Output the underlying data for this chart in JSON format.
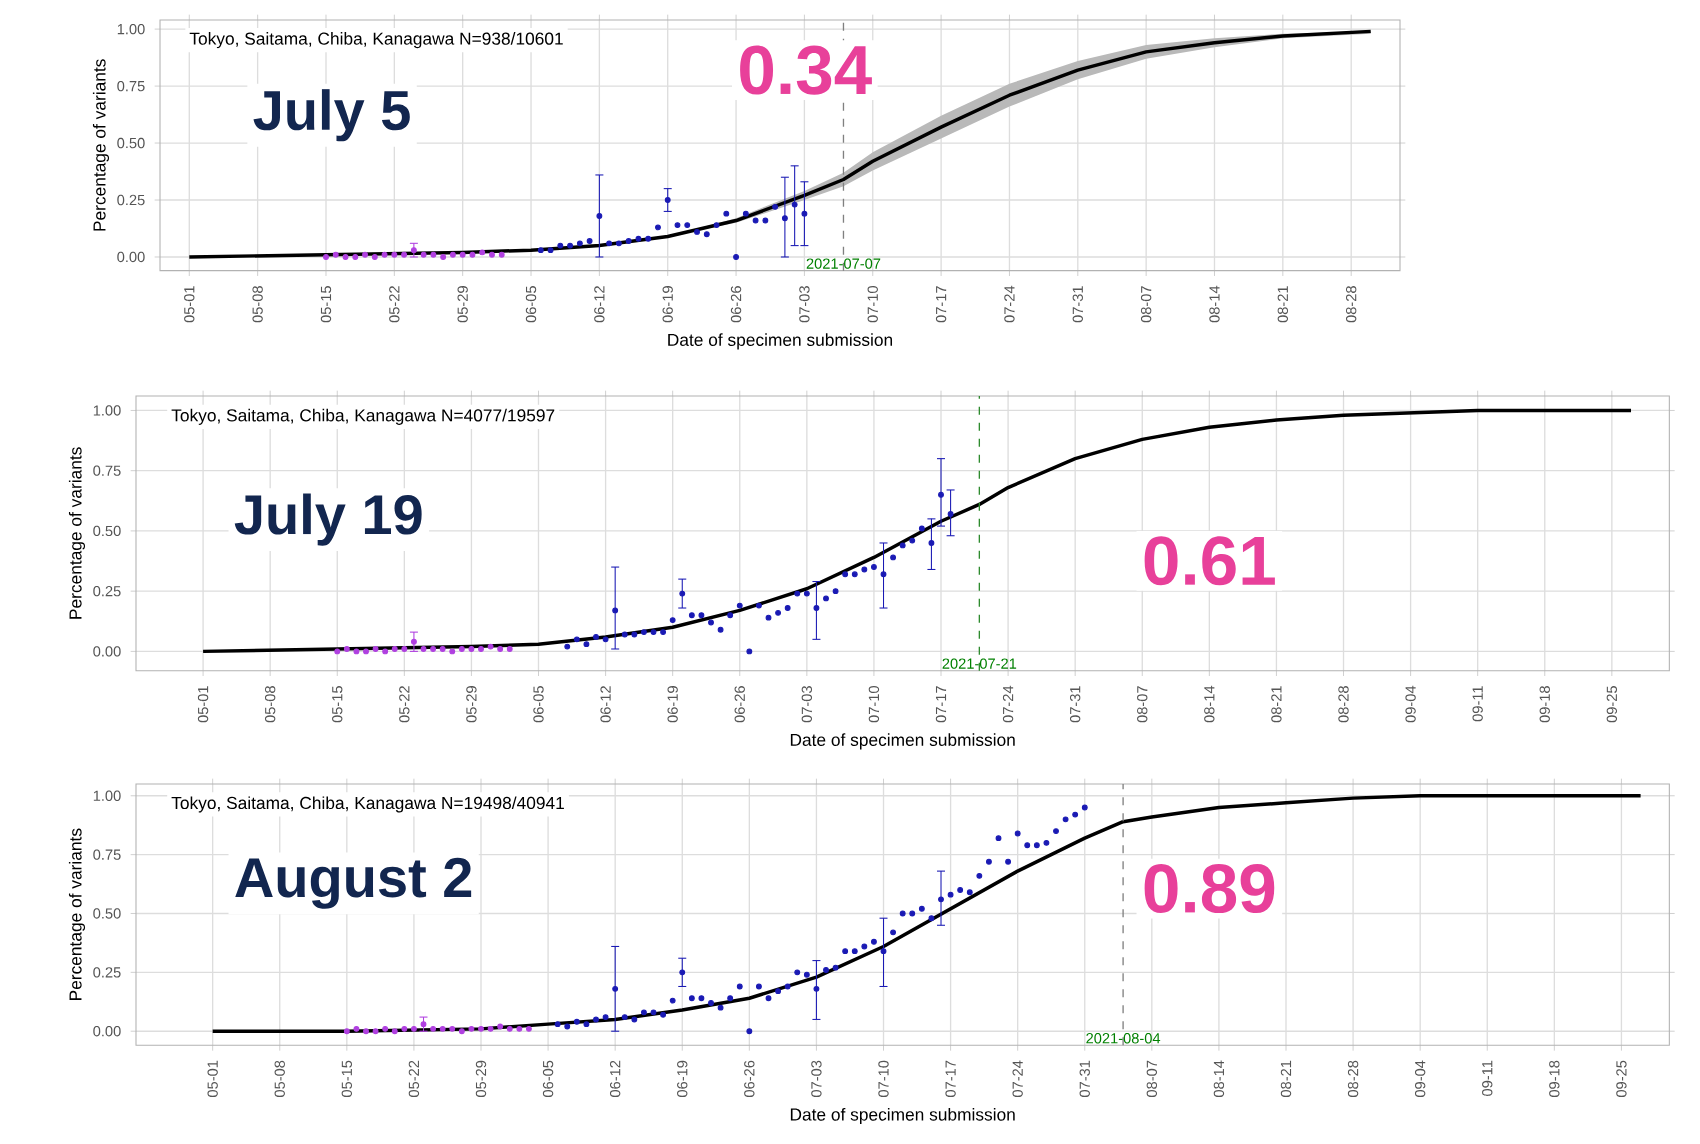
{
  "chart_data": [
    {
      "type": "line",
      "subtitle": "Tokyo, Saitama, Chiba, Kanagawa  N=938/10601",
      "xlabel": "Date of specimen submission",
      "ylabel": "Percentage of variants",
      "annotations": [
        "July 5",
        "0.34"
      ],
      "xlim": [
        "2021-04-28",
        "2021-09-02"
      ],
      "ylim": [
        -0.06,
        1.04
      ],
      "xticks": [
        {
          "value": "2021-05-01",
          "label": "05-01"
        },
        {
          "value": "2021-05-08",
          "label": "05-08"
        },
        {
          "value": "2021-05-15",
          "label": "05-15"
        },
        {
          "value": "2021-05-22",
          "label": "05-22"
        },
        {
          "value": "2021-05-29",
          "label": "05-29"
        },
        {
          "value": "2021-06-05",
          "label": "06-05"
        },
        {
          "value": "2021-06-12",
          "label": "06-12"
        },
        {
          "value": "2021-06-19",
          "label": "06-19"
        },
        {
          "value": "2021-06-26",
          "label": "06-26"
        },
        {
          "value": "2021-07-03",
          "label": "07-03"
        },
        {
          "value": "2021-07-10",
          "label": "07-10"
        },
        {
          "value": "2021-07-17",
          "label": "07-17"
        },
        {
          "value": "2021-07-24",
          "label": "07-24"
        },
        {
          "value": "2021-07-31",
          "label": "07-31"
        },
        {
          "value": "2021-08-07",
          "label": "08-07"
        },
        {
          "value": "2021-08-14",
          "label": "08-14"
        },
        {
          "value": "2021-08-21",
          "label": "08-21"
        },
        {
          "value": "2021-08-28",
          "label": "08-28"
        }
      ],
      "yticks": [
        {
          "value": 0,
          "label": "0.00"
        },
        {
          "value": 0.25,
          "label": "0.25"
        },
        {
          "value": 0.5,
          "label": "0.50"
        },
        {
          "value": 0.75,
          "label": "0.75"
        },
        {
          "value": 1,
          "label": "1.00"
        }
      ],
      "grid": true,
      "ref_lines": [
        {
          "axis": "x",
          "value": "2021-07-07",
          "label": "2021-07-07",
          "color": "#808080",
          "line_style": "dashed"
        }
      ],
      "series": [
        {
          "marker": "none",
          "color": "#000000",
          "x": [
            "2021-05-01",
            "2021-05-15",
            "2021-05-29",
            "2021-06-05",
            "2021-06-12",
            "2021-06-19",
            "2021-06-26",
            "2021-07-03",
            "2021-07-07",
            "2021-07-10",
            "2021-07-17",
            "2021-07-24",
            "2021-07-31",
            "2021-08-07",
            "2021-08-14",
            "2021-08-21",
            "2021-08-30"
          ],
          "values": [
            0,
            0.01,
            0.02,
            0.03,
            0.05,
            0.09,
            0.16,
            0.27,
            0.34,
            0.42,
            0.57,
            0.71,
            0.82,
            0.9,
            0.94,
            0.97,
            0.99
          ],
          "lower": [
            0,
            0.01,
            0.02,
            0.03,
            0.05,
            0.09,
            0.15,
            0.25,
            0.31,
            0.38,
            0.52,
            0.66,
            0.78,
            0.87,
            0.92,
            0.96,
            0.98
          ],
          "upper": [
            0,
            0.01,
            0.02,
            0.03,
            0.05,
            0.09,
            0.17,
            0.29,
            0.37,
            0.46,
            0.62,
            0.76,
            0.86,
            0.93,
            0.96,
            0.98,
            0.99
          ]
        },
        {
          "type": "scatter",
          "color": "#b040e0",
          "x": [
            "2021-05-15",
            "2021-05-16",
            "2021-05-17",
            "2021-05-18",
            "2021-05-19",
            "2021-05-20",
            "2021-05-21",
            "2021-05-22",
            "2021-05-23",
            "2021-05-24",
            "2021-05-25",
            "2021-05-26",
            "2021-05-27",
            "2021-05-28",
            "2021-05-29",
            "2021-05-30",
            "2021-05-31",
            "2021-06-01",
            "2021-06-02"
          ],
          "values": [
            0,
            0.01,
            0,
            0,
            0.01,
            0,
            0.01,
            0.01,
            0.01,
            0.03,
            0.01,
            0.01,
            0,
            0.01,
            0.01,
            0.01,
            0.02,
            0.01,
            0.01
          ],
          "errors": [
            null,
            null,
            null,
            null,
            null,
            null,
            null,
            null,
            null,
            [
              0,
              0.06
            ],
            null,
            null,
            null,
            null,
            null,
            null,
            null,
            null,
            null
          ],
          "marker": "circle"
        },
        {
          "type": "scatter",
          "color": "#1a1ab4",
          "x": [
            "2021-06-06",
            "2021-06-07",
            "2021-06-08",
            "2021-06-09",
            "2021-06-10",
            "2021-06-11",
            "2021-06-12",
            "2021-06-13",
            "2021-06-14",
            "2021-06-15",
            "2021-06-16",
            "2021-06-17",
            "2021-06-18",
            "2021-06-19",
            "2021-06-20",
            "2021-06-21",
            "2021-06-22",
            "2021-06-23",
            "2021-06-24",
            "2021-06-25",
            "2021-06-26",
            "2021-06-27",
            "2021-06-28",
            "2021-06-29",
            "2021-06-30",
            "2021-07-01",
            "2021-07-02",
            "2021-07-03"
          ],
          "values": [
            0.03,
            0.03,
            0.05,
            0.05,
            0.06,
            0.07,
            0.18,
            0.06,
            0.06,
            0.07,
            0.08,
            0.08,
            0.13,
            0.25,
            0.14,
            0.14,
            0.11,
            0.1,
            0.14,
            0.19,
            0,
            0.19,
            0.16,
            0.16,
            0.22,
            0.17,
            0.23,
            0.19
          ],
          "errors": [
            null,
            null,
            null,
            null,
            null,
            null,
            [
              0,
              0.36
            ],
            null,
            null,
            null,
            null,
            null,
            null,
            [
              0.2,
              0.3
            ],
            null,
            null,
            null,
            null,
            null,
            null,
            null,
            null,
            null,
            null,
            null,
            [
              0,
              0.35
            ],
            [
              0.05,
              0.4
            ],
            [
              0.05,
              0.33
            ]
          ],
          "marker": "circle"
        }
      ]
    },
    {
      "type": "line",
      "subtitle": "Tokyo, Saitama, Chiba, Kanagawa  N=4077/19597",
      "xlabel": "Date of specimen submission",
      "ylabel": "Percentage of variants",
      "annotations": [
        "July 19",
        "0.61"
      ],
      "xlim": [
        "2021-04-24",
        "2021-10-01"
      ],
      "ylim": [
        -0.08,
        1.06
      ],
      "xticks": [
        {
          "value": "2021-05-01",
          "label": "05-01"
        },
        {
          "value": "2021-05-08",
          "label": "05-08"
        },
        {
          "value": "2021-05-15",
          "label": "05-15"
        },
        {
          "value": "2021-05-22",
          "label": "05-22"
        },
        {
          "value": "2021-05-29",
          "label": "05-29"
        },
        {
          "value": "2021-06-05",
          "label": "06-05"
        },
        {
          "value": "2021-06-12",
          "label": "06-12"
        },
        {
          "value": "2021-06-19",
          "label": "06-19"
        },
        {
          "value": "2021-06-26",
          "label": "06-26"
        },
        {
          "value": "2021-07-03",
          "label": "07-03"
        },
        {
          "value": "2021-07-10",
          "label": "07-10"
        },
        {
          "value": "2021-07-17",
          "label": "07-17"
        },
        {
          "value": "2021-07-24",
          "label": "07-24"
        },
        {
          "value": "2021-07-31",
          "label": "07-31"
        },
        {
          "value": "2021-08-07",
          "label": "08-07"
        },
        {
          "value": "2021-08-14",
          "label": "08-14"
        },
        {
          "value": "2021-08-21",
          "label": "08-21"
        },
        {
          "value": "2021-08-28",
          "label": "08-28"
        },
        {
          "value": "2021-09-04",
          "label": "09-04"
        },
        {
          "value": "2021-09-11",
          "label": "09-11"
        },
        {
          "value": "2021-09-18",
          "label": "09-18"
        },
        {
          "value": "2021-09-25",
          "label": "09-25"
        }
      ],
      "yticks": [
        {
          "value": 0,
          "label": "0.00"
        },
        {
          "value": 0.25,
          "label": "0.25"
        },
        {
          "value": 0.5,
          "label": "0.50"
        },
        {
          "value": 0.75,
          "label": "0.75"
        },
        {
          "value": 1,
          "label": "1.00"
        }
      ],
      "grid": true,
      "ref_lines": [
        {
          "axis": "x",
          "value": "2021-07-21",
          "label": "2021-07-21",
          "color": "#2e8b2e",
          "line_style": "dashed"
        }
      ],
      "series": [
        {
          "marker": "none",
          "color": "#000000",
          "x": [
            "2021-05-01",
            "2021-05-15",
            "2021-05-29",
            "2021-06-05",
            "2021-06-12",
            "2021-06-19",
            "2021-06-26",
            "2021-07-03",
            "2021-07-10",
            "2021-07-17",
            "2021-07-21",
            "2021-07-24",
            "2021-07-31",
            "2021-08-07",
            "2021-08-14",
            "2021-08-21",
            "2021-08-28",
            "2021-09-04",
            "2021-09-11",
            "2021-09-27"
          ],
          "values": [
            0,
            0.01,
            0.02,
            0.03,
            0.06,
            0.1,
            0.17,
            0.26,
            0.39,
            0.54,
            0.61,
            0.68,
            0.8,
            0.88,
            0.93,
            0.96,
            0.98,
            0.99,
            1,
            1
          ]
        },
        {
          "type": "scatter",
          "color": "#b040e0",
          "x": [
            "2021-05-15",
            "2021-05-16",
            "2021-05-17",
            "2021-05-18",
            "2021-05-19",
            "2021-05-20",
            "2021-05-21",
            "2021-05-22",
            "2021-05-23",
            "2021-05-24",
            "2021-05-25",
            "2021-05-26",
            "2021-05-27",
            "2021-05-28",
            "2021-05-29",
            "2021-05-30",
            "2021-05-31",
            "2021-06-01",
            "2021-06-02"
          ],
          "values": [
            0,
            0.01,
            0,
            0,
            0.01,
            0,
            0.01,
            0.01,
            0.04,
            0.01,
            0.01,
            0.01,
            0,
            0.01,
            0.01,
            0.01,
            0.02,
            0.01,
            0.01
          ],
          "errors": [
            null,
            null,
            null,
            null,
            null,
            null,
            null,
            null,
            [
              0,
              0.08
            ],
            null,
            null,
            null,
            null,
            null,
            null,
            null,
            null,
            null,
            null
          ],
          "marker": "circle"
        },
        {
          "type": "scatter",
          "color": "#1a1ab4",
          "x": [
            "2021-06-08",
            "2021-06-09",
            "2021-06-10",
            "2021-06-11",
            "2021-06-12",
            "2021-06-13",
            "2021-06-14",
            "2021-06-15",
            "2021-06-16",
            "2021-06-17",
            "2021-06-18",
            "2021-06-19",
            "2021-06-20",
            "2021-06-21",
            "2021-06-22",
            "2021-06-23",
            "2021-06-24",
            "2021-06-25",
            "2021-06-26",
            "2021-06-27",
            "2021-06-28",
            "2021-06-29",
            "2021-06-30",
            "2021-07-01",
            "2021-07-02",
            "2021-07-03",
            "2021-07-04",
            "2021-07-05",
            "2021-07-06",
            "2021-07-07",
            "2021-07-08",
            "2021-07-09",
            "2021-07-10",
            "2021-07-11",
            "2021-07-12",
            "2021-07-13",
            "2021-07-14",
            "2021-07-15",
            "2021-07-16",
            "2021-07-17",
            "2021-07-18"
          ],
          "values": [
            0.02,
            0.05,
            0.03,
            0.06,
            0.05,
            0.17,
            0.07,
            0.07,
            0.08,
            0.08,
            0.08,
            0.13,
            0.24,
            0.15,
            0.15,
            0.12,
            0.09,
            0.15,
            0.19,
            0,
            0.19,
            0.14,
            0.16,
            0.18,
            0.24,
            0.24,
            0.18,
            0.22,
            0.25,
            0.32,
            0.32,
            0.34,
            0.35,
            0.32,
            0.39,
            0.44,
            0.46,
            0.51,
            0.45,
            0.65,
            0.57
          ],
          "errors": [
            null,
            null,
            null,
            null,
            null,
            [
              0.01,
              0.35
            ],
            null,
            null,
            null,
            null,
            null,
            null,
            [
              0.18,
              0.3
            ],
            null,
            null,
            null,
            null,
            null,
            null,
            null,
            null,
            null,
            null,
            null,
            null,
            null,
            [
              0.05,
              0.29
            ],
            null,
            null,
            null,
            null,
            null,
            null,
            [
              0.18,
              0.45
            ],
            null,
            null,
            null,
            null,
            [
              0.34,
              0.55
            ],
            [
              0.52,
              0.8
            ],
            [
              0.48,
              0.67
            ]
          ],
          "marker": "circle"
        }
      ]
    },
    {
      "type": "line",
      "subtitle": "Tokyo, Saitama, Chiba, Kanagawa  N=19498/40941",
      "xlabel": "Date of specimen submission",
      "ylabel": "Percentage of variants",
      "annotations": [
        "August 2",
        "0.89"
      ],
      "xlim": [
        "2021-04-23",
        "2021-09-30"
      ],
      "ylim": [
        -0.06,
        1.05
      ],
      "xticks": [
        {
          "value": "2021-05-01",
          "label": "05-01"
        },
        {
          "value": "2021-05-08",
          "label": "05-08"
        },
        {
          "value": "2021-05-15",
          "label": "05-15"
        },
        {
          "value": "2021-05-22",
          "label": "05-22"
        },
        {
          "value": "2021-05-29",
          "label": "05-29"
        },
        {
          "value": "2021-06-05",
          "label": "06-05"
        },
        {
          "value": "2021-06-12",
          "label": "06-12"
        },
        {
          "value": "2021-06-19",
          "label": "06-19"
        },
        {
          "value": "2021-06-26",
          "label": "06-26"
        },
        {
          "value": "2021-07-03",
          "label": "07-03"
        },
        {
          "value": "2021-07-10",
          "label": "07-10"
        },
        {
          "value": "2021-07-17",
          "label": "07-17"
        },
        {
          "value": "2021-07-24",
          "label": "07-24"
        },
        {
          "value": "2021-07-31",
          "label": "07-31"
        },
        {
          "value": "2021-08-07",
          "label": "08-07"
        },
        {
          "value": "2021-08-14",
          "label": "08-14"
        },
        {
          "value": "2021-08-21",
          "label": "08-21"
        },
        {
          "value": "2021-08-28",
          "label": "08-28"
        },
        {
          "value": "2021-09-04",
          "label": "09-04"
        },
        {
          "value": "2021-09-11",
          "label": "09-11"
        },
        {
          "value": "2021-09-18",
          "label": "09-18"
        },
        {
          "value": "2021-09-25",
          "label": "09-25"
        }
      ],
      "yticks": [
        {
          "value": 0,
          "label": "0.00"
        },
        {
          "value": 0.25,
          "label": "0.25"
        },
        {
          "value": 0.5,
          "label": "0.50"
        },
        {
          "value": 0.75,
          "label": "0.75"
        },
        {
          "value": 1,
          "label": "1.00"
        }
      ],
      "grid": true,
      "ref_lines": [
        {
          "axis": "x",
          "value": "2021-08-04",
          "label": "2021-08-04",
          "color": "#808080",
          "line_style": "dashed"
        }
      ],
      "series": [
        {
          "marker": "none",
          "color": "#000000",
          "x": [
            "2021-05-01",
            "2021-05-15",
            "2021-05-29",
            "2021-06-05",
            "2021-06-12",
            "2021-06-19",
            "2021-06-26",
            "2021-07-03",
            "2021-07-10",
            "2021-07-17",
            "2021-07-24",
            "2021-07-31",
            "2021-08-04",
            "2021-08-07",
            "2021-08-14",
            "2021-08-21",
            "2021-08-28",
            "2021-09-04",
            "2021-09-27"
          ],
          "values": [
            0,
            0,
            0.01,
            0.03,
            0.05,
            0.09,
            0.14,
            0.23,
            0.36,
            0.52,
            0.68,
            0.82,
            0.89,
            0.91,
            0.95,
            0.97,
            0.99,
            1,
            1
          ]
        },
        {
          "type": "scatter",
          "color": "#b040e0",
          "x": [
            "2021-05-15",
            "2021-05-16",
            "2021-05-17",
            "2021-05-18",
            "2021-05-19",
            "2021-05-20",
            "2021-05-21",
            "2021-05-22",
            "2021-05-23",
            "2021-05-24",
            "2021-05-25",
            "2021-05-26",
            "2021-05-27",
            "2021-05-28",
            "2021-05-29",
            "2021-05-30",
            "2021-05-31",
            "2021-06-01",
            "2021-06-02",
            "2021-06-03"
          ],
          "values": [
            0,
            0.01,
            0,
            0,
            0.01,
            0,
            0.01,
            0.01,
            0.03,
            0.01,
            0.01,
            0.01,
            0,
            0.01,
            0.01,
            0.01,
            0.02,
            0.01,
            0.01,
            0.01
          ],
          "errors": [
            null,
            null,
            null,
            null,
            null,
            null,
            null,
            null,
            [
              0,
              0.06
            ],
            null,
            null,
            null,
            null,
            null,
            null,
            null,
            null,
            null,
            null,
            null
          ],
          "marker": "circle"
        },
        {
          "type": "scatter",
          "color": "#1a1ab4",
          "x": [
            "2021-06-06",
            "2021-06-07",
            "2021-06-08",
            "2021-06-09",
            "2021-06-10",
            "2021-06-11",
            "2021-06-12",
            "2021-06-13",
            "2021-06-14",
            "2021-06-15",
            "2021-06-16",
            "2021-06-17",
            "2021-06-18",
            "2021-06-19",
            "2021-06-20",
            "2021-06-21",
            "2021-06-22",
            "2021-06-23",
            "2021-06-24",
            "2021-06-25",
            "2021-06-26",
            "2021-06-27",
            "2021-06-28",
            "2021-06-29",
            "2021-06-30",
            "2021-07-01",
            "2021-07-02",
            "2021-07-03",
            "2021-07-04",
            "2021-07-05",
            "2021-07-06",
            "2021-07-07",
            "2021-07-08",
            "2021-07-09",
            "2021-07-10",
            "2021-07-11",
            "2021-07-12",
            "2021-07-13",
            "2021-07-14",
            "2021-07-15",
            "2021-07-16",
            "2021-07-17",
            "2021-07-18",
            "2021-07-19",
            "2021-07-20",
            "2021-07-21",
            "2021-07-22",
            "2021-07-23",
            "2021-07-24",
            "2021-07-25",
            "2021-07-26",
            "2021-07-27",
            "2021-07-28",
            "2021-07-29",
            "2021-07-30",
            "2021-07-31"
          ],
          "values": [
            0.03,
            0.02,
            0.04,
            0.03,
            0.05,
            0.06,
            0.18,
            0.06,
            0.05,
            0.08,
            0.08,
            0.07,
            0.13,
            0.25,
            0.14,
            0.14,
            0.12,
            0.1,
            0.14,
            0.19,
            0,
            0.19,
            0.14,
            0.17,
            0.19,
            0.25,
            0.24,
            0.18,
            0.26,
            0.27,
            0.34,
            0.34,
            0.36,
            0.38,
            0.34,
            0.42,
            0.5,
            0.5,
            0.52,
            0.48,
            0.56,
            0.58,
            0.6,
            0.59,
            0.66,
            0.72,
            0.82,
            0.72,
            0.84,
            0.79,
            0.79,
            0.8,
            0.85,
            0.9,
            0.92,
            0.95
          ],
          "errors": [
            null,
            null,
            null,
            null,
            null,
            null,
            [
              0,
              0.36
            ],
            null,
            null,
            null,
            null,
            null,
            null,
            [
              0.19,
              0.31
            ],
            null,
            null,
            null,
            null,
            null,
            null,
            null,
            null,
            null,
            null,
            null,
            null,
            null,
            [
              0.05,
              0.3
            ],
            null,
            null,
            null,
            null,
            null,
            null,
            [
              0.19,
              0.48
            ],
            null,
            null,
            null,
            null,
            null,
            [
              0.45,
              0.68
            ],
            null,
            null,
            null,
            null,
            null,
            null,
            null,
            null,
            null,
            null,
            null,
            null,
            null,
            null,
            null
          ],
          "marker": "circle"
        }
      ]
    }
  ]
}
